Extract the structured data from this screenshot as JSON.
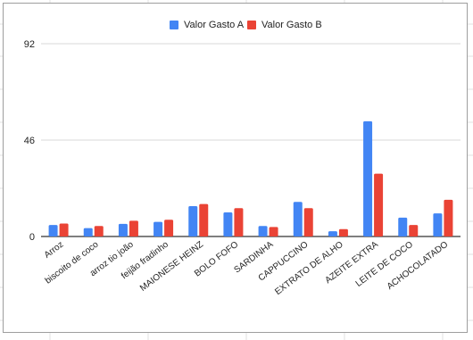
{
  "colors": {
    "series_a": "#4285f4",
    "series_b": "#ea4335",
    "gridline": "#d9d9d9",
    "baseline": "#333333",
    "text": "#222222"
  },
  "chart_data": {
    "type": "bar",
    "title": "",
    "xlabel": "",
    "ylabel": "",
    "legend_position": "top-center",
    "grid": true,
    "ylim": [
      0,
      92
    ],
    "yticks": [
      "0",
      "46",
      "92"
    ],
    "categories": [
      "Arroz",
      "biscoito de coco",
      "arroz tio joão",
      "feijão fradinho",
      "MAIONESE HEINZ",
      "BOLO FOFO",
      "SARDINHA",
      "CAPPUCCINO",
      "EXTRATO DE ALHO",
      "AZEITE EXTRA",
      "LEITE DE COCO",
      "ACHOCOLATADO"
    ],
    "series": [
      {
        "name": "Valor Gasto A",
        "values": [
          5.5,
          4,
          6,
          7,
          14.5,
          11.5,
          5,
          16.5,
          2.5,
          55,
          9,
          11
        ]
      },
      {
        "name": "Valor Gasto B",
        "values": [
          6.2,
          5,
          7.5,
          8,
          15.5,
          13.5,
          4.5,
          13.5,
          3.5,
          30,
          5.5,
          17.5
        ]
      }
    ]
  }
}
